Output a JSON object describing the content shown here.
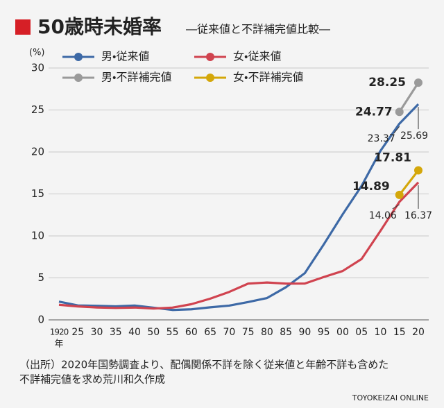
{
  "chart_data": {
    "type": "line",
    "title": "50歳時未婚率",
    "subtitle": "―従来値と不詳補完値比較―",
    "y_unit": "(%)",
    "x_label": "年",
    "categories": [
      "1920",
      "25",
      "30",
      "35",
      "40",
      "50",
      "55",
      "60",
      "65",
      "70",
      "75",
      "80",
      "85",
      "90",
      "95",
      "00",
      "05",
      "10",
      "15",
      "20"
    ],
    "series": [
      {
        "name": "男・従来値",
        "color": "#3d69a6",
        "values": [
          2.17,
          1.72,
          1.68,
          1.61,
          1.71,
          1.45,
          1.18,
          1.26,
          1.5,
          1.7,
          2.12,
          2.6,
          3.89,
          5.57,
          8.99,
          12.57,
          15.96,
          20.14,
          23.37,
          25.69
        ]
      },
      {
        "name": "女・従来値",
        "color": "#d0434f",
        "values": [
          1.8,
          1.6,
          1.48,
          1.42,
          1.47,
          1.35,
          1.46,
          1.87,
          2.53,
          3.33,
          4.32,
          4.45,
          4.32,
          4.33,
          5.1,
          5.82,
          7.25,
          10.61,
          14.06,
          16.37
        ]
      },
      {
        "name": "男・不詳補完値",
        "color": "#9a9a9a",
        "values": [
          null,
          null,
          null,
          null,
          null,
          null,
          null,
          null,
          null,
          null,
          null,
          null,
          null,
          null,
          null,
          null,
          null,
          null,
          24.77,
          28.25
        ]
      },
      {
        "name": "女・不詳補完値",
        "color": "#d4a70a",
        "values": [
          null,
          null,
          null,
          null,
          null,
          null,
          null,
          null,
          null,
          null,
          null,
          null,
          null,
          null,
          null,
          null,
          null,
          null,
          14.89,
          17.81
        ]
      }
    ],
    "ylim": [
      0,
      30
    ],
    "yticks": [
      0,
      5,
      10,
      15,
      20,
      25,
      30
    ],
    "grid": true,
    "source": [
      "（出所）2020年国勢調査より、配偶関係不詳を除く従来値と年齢不詳も含めた",
      "不詳補完値を求め荒川和久作成"
    ],
    "credit": "TOYOKEIZAI ONLINE"
  }
}
